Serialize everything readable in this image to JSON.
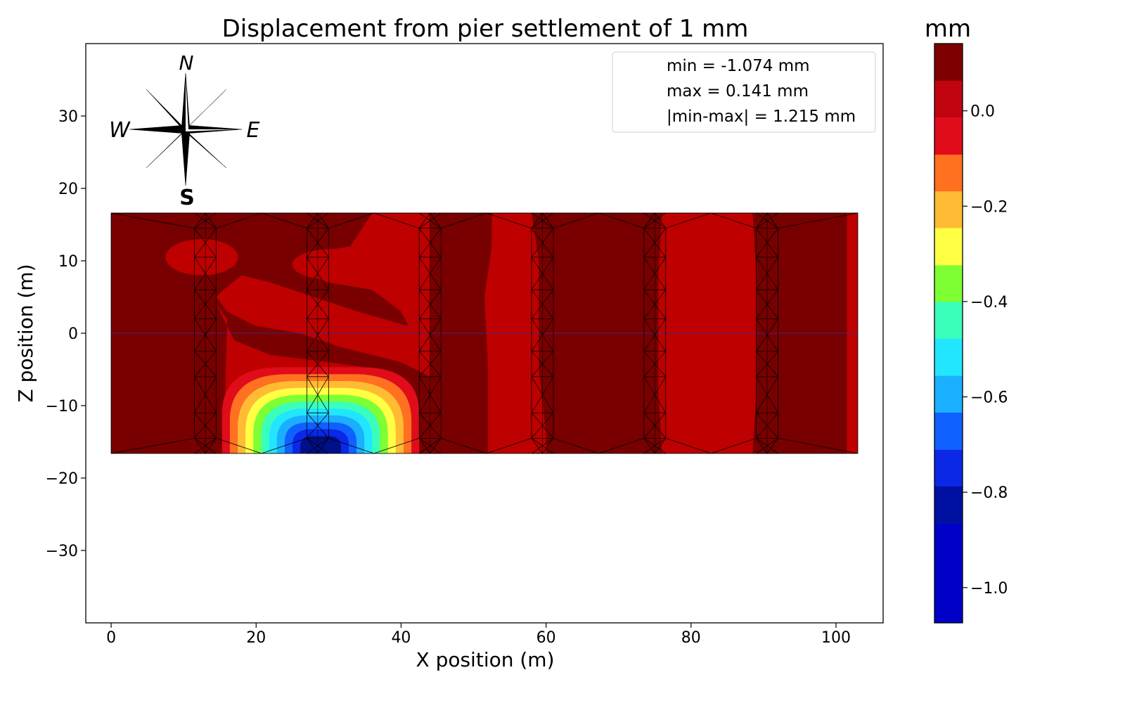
{
  "chart_data": {
    "type": "heatmap",
    "title": "Displacement from pier settlement of 1 mm",
    "xlabel": "X position (m)",
    "ylabel": "Z position (m)",
    "xlim": [
      -3.5,
      106.5
    ],
    "ylim": [
      -40,
      40
    ],
    "x_ticks": [
      0,
      20,
      40,
      60,
      80,
      100
    ],
    "x_tick_labels": [
      "0",
      "20",
      "40",
      "60",
      "80",
      "100"
    ],
    "y_ticks": [
      30,
      20,
      10,
      0,
      -10,
      -20,
      -30
    ],
    "y_tick_labels": [
      "30",
      "20",
      "10",
      "0",
      "−10",
      "−20",
      "−30"
    ],
    "legend": {
      "position": "top-right",
      "lines": [
        "min = -1.074 mm",
        "max = 0.141 mm",
        "|min-max| = 1.215 mm"
      ]
    },
    "compass": {
      "north": "N",
      "south": "S",
      "east": "E",
      "west": "W",
      "position": "top-left"
    },
    "colorbar": {
      "label": "mm",
      "min": -1.074,
      "max": 0.141,
      "ticks": [
        0.0,
        -0.2,
        -0.4,
        -0.6,
        -0.8,
        -1.0
      ],
      "tick_labels": [
        "0.0",
        "−0.2",
        "−0.4",
        "−0.6",
        "−0.8",
        "−1.0"
      ],
      "levels": [
        {
          "from": 0.063,
          "to": 0.141,
          "color": "#7f0000"
        },
        {
          "from": -0.014,
          "to": 0.063,
          "color": "#c00410"
        },
        {
          "from": -0.092,
          "to": -0.014,
          "color": "#e00c1a"
        },
        {
          "from": -0.169,
          "to": -0.092,
          "color": "#ff7020"
        },
        {
          "from": -0.246,
          "to": -0.169,
          "color": "#ffbb33"
        },
        {
          "from": -0.324,
          "to": -0.246,
          "color": "#ffff44"
        },
        {
          "from": -0.401,
          "to": -0.324,
          "color": "#7dff33"
        },
        {
          "from": -0.478,
          "to": -0.401,
          "color": "#3affbb"
        },
        {
          "from": -0.556,
          "to": -0.478,
          "color": "#22e6ff"
        },
        {
          "from": -0.633,
          "to": -0.556,
          "color": "#1ab0ff"
        },
        {
          "from": -0.711,
          "to": -0.633,
          "color": "#1060ff"
        },
        {
          "from": -0.788,
          "to": -0.711,
          "color": "#0a28e6"
        },
        {
          "from": -0.866,
          "to": -0.788,
          "color": "#0010a0"
        },
        {
          "from": -1.074,
          "to": -0.866,
          "color": "#0000c8"
        }
      ]
    },
    "deck": {
      "x_range": [
        0,
        103
      ],
      "z_range": [
        -16.6,
        16.6
      ]
    },
    "pier_x": [
      13,
      28.5,
      44,
      59.5,
      75,
      90.5
    ],
    "settled_pier_x": 28.5,
    "colors": {
      "background_dark": "#780000",
      "background_mid": "#be0000",
      "basin_core": "#00108a"
    }
  }
}
